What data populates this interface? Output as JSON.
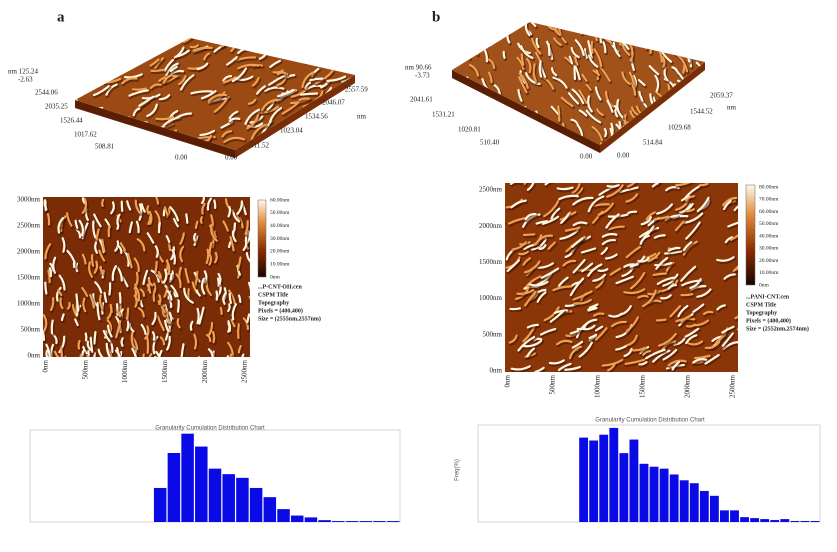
{
  "panels": [
    {
      "label": "a",
      "surface": {
        "z_labels": [
          "nm 125.24",
          "-2.63"
        ],
        "left_axis": [
          "2544.06",
          "2035.25",
          "1526.44",
          "1017.62",
          "508.81",
          "0.00"
        ],
        "right_axis": [
          "0.00",
          "511.52",
          "1023.04",
          "1534.56",
          "2046.07",
          "2557.59"
        ],
        "unit": "nm"
      },
      "topography": {
        "y_ticks": [
          "3000nm",
          "2500nm",
          "2000nm",
          "1500nm",
          "1000nm",
          "500nm",
          "0nm"
        ],
        "x_ticks": [
          "0nm",
          "500nm",
          "1000nm",
          "1500nm",
          "2000nm",
          "2500nm"
        ],
        "colorbar": [
          "60.00nm",
          "50.00nm",
          "40.00nm",
          "30.00nm",
          "20.00nm",
          "10.00nm",
          "0nm"
        ],
        "info": [
          "...P-CNT-OH.cen",
          "CSPM Title",
          "Topography",
          "Pixels = (400,400)",
          "Size = (2555nm,2557nm)"
        ]
      }
    },
    {
      "label": "b",
      "surface": {
        "z_labels": [
          "nm 90.66",
          "-3.73"
        ],
        "left_axis": [
          "2041.61",
          "1531.21",
          "1020.81",
          "510.40",
          "0.00"
        ],
        "right_axis": [
          "0.00",
          "514.84",
          "1029.68",
          "1544.52",
          "2059.37"
        ],
        "unit": "nm"
      },
      "topography": {
        "y_ticks": [
          "2500nm",
          "2000nm",
          "1500nm",
          "1000nm",
          "500nm",
          "0nm"
        ],
        "x_ticks": [
          "0nm",
          "500nm",
          "1000nm",
          "1500nm",
          "2000nm",
          "2500nm"
        ],
        "colorbar": [
          "80.00nm",
          "70.00nm",
          "60.00nm",
          "50.00nm",
          "40.00nm",
          "30.00nm",
          "20.00nm",
          "10.00nm",
          "0nm"
        ],
        "info": [
          "...PANI-CNT.cen",
          "CSPM Title",
          "Topography",
          "Pixels = (400,400)",
          "Size = (2552nm,2574nm)"
        ]
      }
    }
  ],
  "chart_data": [
    {
      "type": "bar",
      "title": "Granularity Cumulation Distribution Chart",
      "color": "#0a0ae6",
      "ylim": [
        0,
        100
      ],
      "categories": [
        null,
        null,
        null,
        null,
        null,
        null,
        null,
        null,
        null,
        null,
        null,
        null,
        null,
        null,
        null,
        null,
        null,
        null,
        null,
        null,
        null,
        null,
        null,
        null,
        null,
        null,
        null
      ],
      "values": [
        null,
        null,
        null,
        null,
        null,
        null,
        null,
        null,
        null,
        37,
        75,
        96,
        82,
        58,
        52,
        48,
        37,
        27,
        14,
        7,
        5,
        2,
        1,
        1,
        1,
        1,
        1
      ]
    },
    {
      "type": "bar",
      "title": "Granularity Cumulation Distribution Chart",
      "y_label": "Freq(%)",
      "color": "#0a0ae6",
      "ylim": [
        0,
        100
      ],
      "categories": [
        null,
        null,
        null,
        null,
        null,
        null,
        null,
        null,
        null,
        null,
        null,
        null,
        null,
        null,
        null,
        null,
        null,
        null,
        null,
        null,
        null,
        null,
        null,
        null,
        null,
        null,
        null,
        null,
        null,
        null,
        null,
        null,
        null,
        null
      ],
      "values": [
        null,
        null,
        null,
        null,
        null,
        null,
        null,
        null,
        null,
        null,
        87,
        84,
        90,
        97,
        71,
        85,
        60,
        57,
        55,
        49,
        43,
        40,
        32,
        27,
        12,
        12,
        5,
        4,
        3,
        2,
        3,
        1,
        1,
        1
      ]
    }
  ]
}
